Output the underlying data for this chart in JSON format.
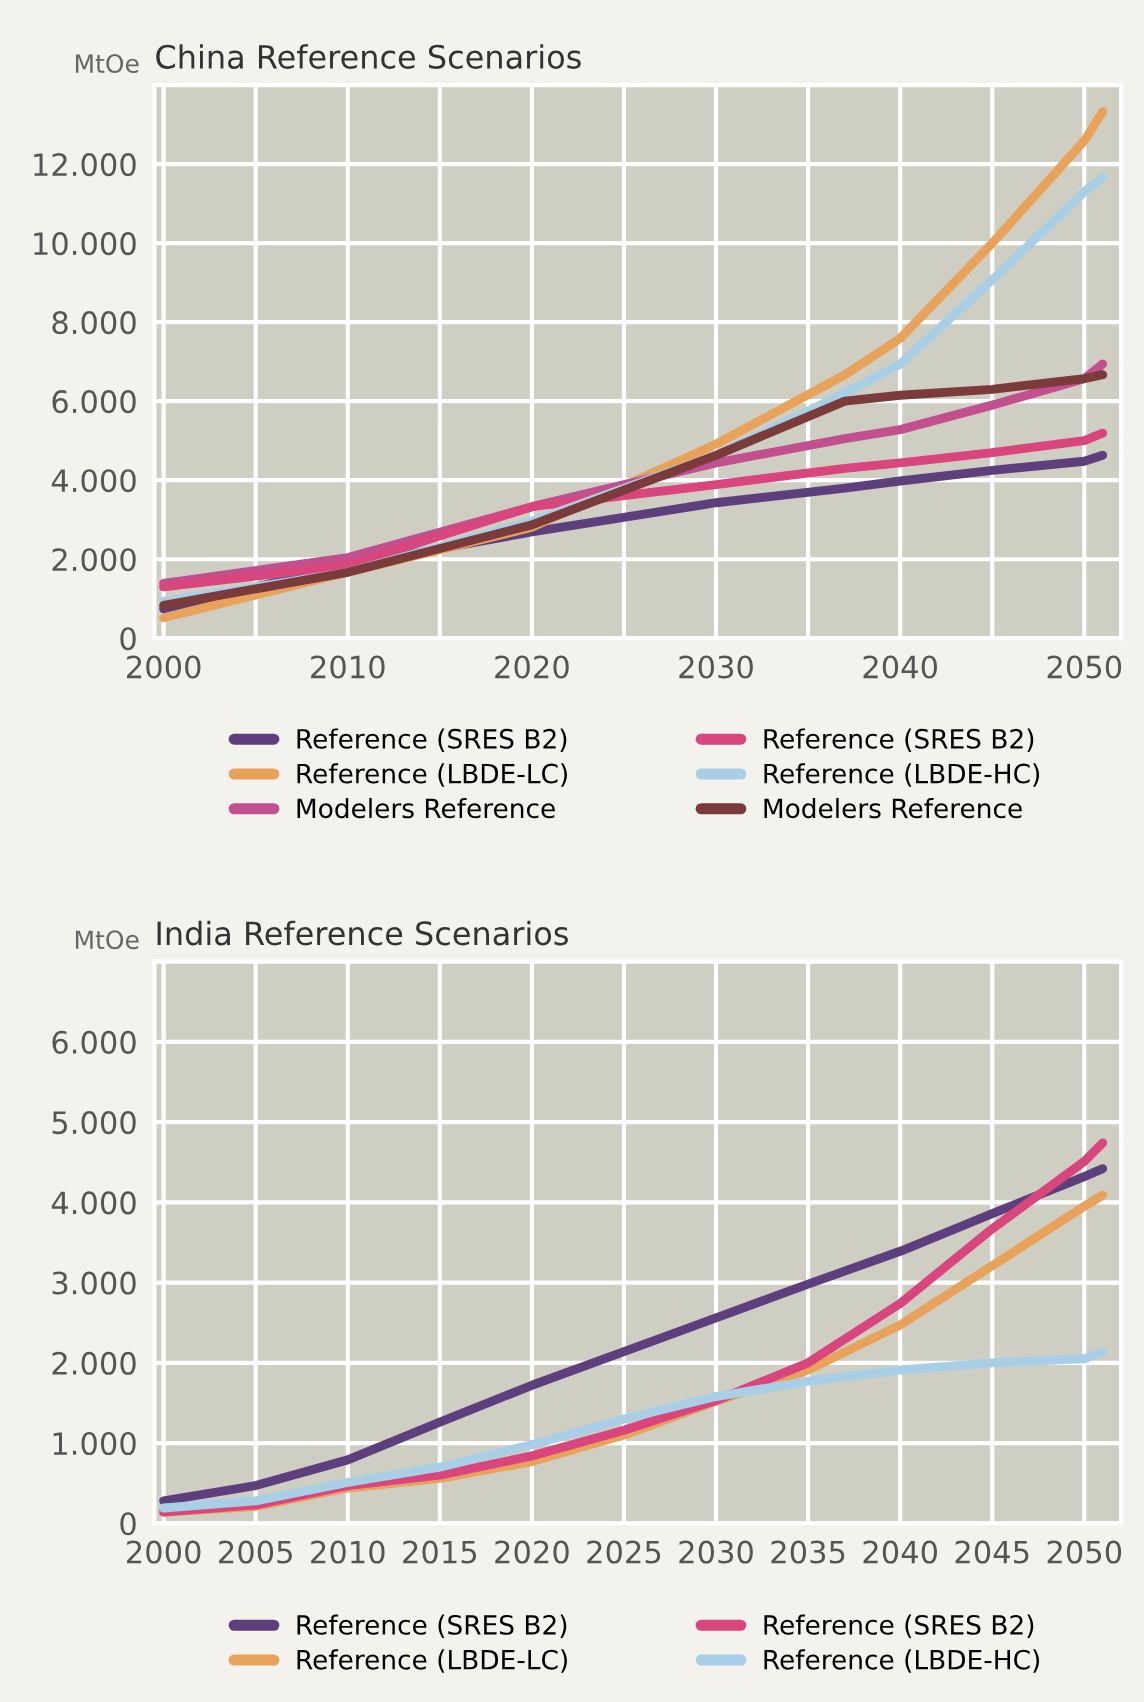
{
  "chart_data": [
    {
      "type": "line",
      "title": "China Reference Scenarios",
      "ylabel": "MtOe",
      "x": [
        2000,
        2010,
        2020,
        2030,
        2037,
        2040,
        2045,
        2050,
        2051
      ],
      "xlim": [
        1999.5,
        2052
      ],
      "ylim": [
        0,
        14000
      ],
      "xticks": [
        2000,
        {
          "value": 2005,
          "label": null
        },
        2010,
        {
          "value": 2015,
          "label": null
        },
        2020,
        {
          "value": 2025,
          "label": null
        },
        2030,
        {
          "value": 2035,
          "label": null
        },
        2040,
        {
          "value": 2045,
          "label": null
        },
        2050
      ],
      "yticks": [
        {
          "value": 0,
          "label": "0"
        },
        {
          "value": 2000,
          "label": "2.000"
        },
        {
          "value": 4000,
          "label": "4.000"
        },
        {
          "value": 6000,
          "label": "6.000"
        },
        {
          "value": 8000,
          "label": "8.000"
        },
        {
          "value": 10000,
          "label": "10.000"
        },
        {
          "value": 12000,
          "label": "12.000"
        }
      ],
      "grid": true,
      "legend": "bottom",
      "marker": "none",
      "line_style": "solid",
      "series": [
        {
          "name": "Reference (SRES B2)",
          "color": "#5e3f7e",
          "values": [
            740,
            1850,
            2690,
            3430,
            3800,
            3980,
            4250,
            4480,
            4630
          ]
        },
        {
          "name": "Reference (LBDE-LC)",
          "color": "#e8a25a",
          "values": [
            520,
            1670,
            2810,
            4910,
            6670,
            7590,
            10000,
            12590,
            13330
          ]
        },
        {
          "name": "Modelers Reference",
          "color": "#c24f8e",
          "values": [
            1390,
            2040,
            3330,
            4440,
            5050,
            5280,
            5900,
            6570,
            6940
          ]
        },
        {
          "name": "Reference (SRES B2)",
          "color": "#d9467e",
          "values": [
            1300,
            1850,
            3330,
            3890,
            4300,
            4440,
            4700,
            5000,
            5190
          ]
        },
        {
          "name": "Reference (LBDE-HC)",
          "color": "#a9cfe6",
          "values": [
            930,
            1670,
            2960,
            4630,
            6200,
            6940,
            9070,
            11300,
            11670
          ]
        },
        {
          "name": "Modelers Reference",
          "color": "#7a3b3a",
          "values": [
            830,
            1670,
            2870,
            4630,
            6000,
            6150,
            6300,
            6570,
            6670
          ]
        }
      ]
    },
    {
      "type": "line",
      "title": "India Reference Scenarios",
      "ylabel": "MtOe",
      "x": [
        2000,
        2005,
        2010,
        2015,
        2020,
        2025,
        2030,
        2035,
        2040,
        2045,
        2050,
        2051
      ],
      "xlim": [
        1999.5,
        2052
      ],
      "ylim": [
        0,
        7000
      ],
      "xticks": [
        2000,
        2005,
        2010,
        2015,
        2020,
        2025,
        2030,
        2035,
        2040,
        2045,
        2050
      ],
      "yticks": [
        {
          "value": 0,
          "label": "0"
        },
        {
          "value": 1000,
          "label": "1.000"
        },
        {
          "value": 2000,
          "label": "2.000"
        },
        {
          "value": 3000,
          "label": "3.000"
        },
        {
          "value": 4000,
          "label": "4.000"
        },
        {
          "value": 5000,
          "label": "5.000"
        },
        {
          "value": 6000,
          "label": "6.000"
        }
      ],
      "grid": true,
      "legend": "bottom",
      "marker": "none",
      "line_style": "solid",
      "series": [
        {
          "name": "Reference (SRES B2)",
          "color": "#5e3f7e",
          "values": [
            280,
            470,
            790,
            1260,
            1720,
            2140,
            2560,
            2980,
            3390,
            3860,
            4320,
            4420
          ]
        },
        {
          "name": "Reference (LBDE-LC)",
          "color": "#e8a25a",
          "values": [
            140,
            210,
            440,
            560,
            770,
            1100,
            1520,
            1910,
            2470,
            3210,
            3950,
            4090
          ]
        },
        {
          "name": "Reference (SRES B2)",
          "color": "#d9467e",
          "values": [
            140,
            230,
            470,
            600,
            840,
            1160,
            1530,
            2000,
            2740,
            3670,
            4510,
            4740
          ]
        },
        {
          "name": "Reference (LBDE-HC)",
          "color": "#a9cfe6",
          "values": [
            190,
            280,
            510,
            700,
            980,
            1300,
            1580,
            1770,
            1910,
            2000,
            2050,
            2140
          ]
        }
      ]
    }
  ]
}
